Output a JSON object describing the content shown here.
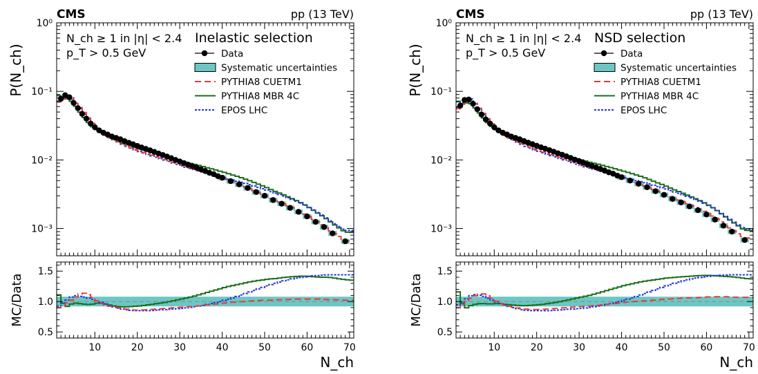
{
  "chart_data": [
    {
      "type": "line",
      "experiment": "CMS",
      "energy": "pp (13 TeV)",
      "cut_label_1": "N_ch ≥ 1 in |η| < 2.4",
      "cut_label_2": "p_T > 0.5 GeV",
      "selection": "Inelastic selection",
      "xlabel": "N_ch",
      "ylabel": "P(N_ch)",
      "ratio_ylabel": "MC/Data",
      "xlim": [
        1,
        71
      ],
      "ylim": [
        0.0004,
        1
      ],
      "ylog": true,
      "ratio_ylim": [
        0.4,
        1.65
      ],
      "x_ticks": [
        10,
        20,
        30,
        40,
        50,
        60,
        70
      ],
      "y_ticks": [
        {
          "value": 1,
          "label": "10⁰"
        },
        {
          "value": 0.1,
          "label": "10⁻¹"
        },
        {
          "value": 0.01,
          "label": "10⁻²"
        },
        {
          "value": 0.001,
          "label": "10⁻³"
        }
      ],
      "ratio_ticks": [
        {
          "value": 0.5,
          "label": "0.5"
        },
        {
          "value": 1.0,
          "label": "1.0"
        },
        {
          "value": 1.5,
          "label": "1.5"
        }
      ],
      "data_points": {
        "x": [
          2,
          3,
          4,
          5,
          6,
          7,
          8,
          9,
          10,
          11,
          12,
          13,
          14,
          15,
          16,
          17,
          18,
          19,
          20,
          21,
          22,
          23,
          24,
          25,
          26,
          27,
          28,
          29,
          30,
          31,
          32,
          33,
          34,
          35,
          36,
          37,
          38,
          39,
          40,
          42,
          44,
          46,
          48,
          50,
          52,
          54,
          56,
          58,
          60,
          62,
          64,
          66,
          69
        ],
        "y": [
          0.078,
          0.088,
          0.082,
          0.068,
          0.057,
          0.047,
          0.04,
          0.034,
          0.03,
          0.027,
          0.025,
          0.0235,
          0.022,
          0.021,
          0.02,
          0.0188,
          0.0178,
          0.0169,
          0.016,
          0.0152,
          0.0145,
          0.0138,
          0.0131,
          0.0124,
          0.0118,
          0.0112,
          0.0106,
          0.01,
          0.0095,
          0.009,
          0.0085,
          0.0081,
          0.0077,
          0.0073,
          0.0069,
          0.0065,
          0.0062,
          0.0058,
          0.0055,
          0.0049,
          0.0044,
          0.0039,
          0.0034,
          0.003,
          0.0026,
          0.0023,
          0.002,
          0.00175,
          0.0015,
          0.00125,
          0.00105,
          0.00085,
          0.00065
        ]
      },
      "syst_rel_error": 0.08,
      "mc_ratios": {
        "x": [
          1,
          3,
          5,
          7,
          9,
          11,
          13,
          15,
          17,
          19,
          21,
          23,
          25,
          27,
          29,
          31,
          33,
          35,
          37,
          39,
          41,
          43,
          45,
          47,
          49,
          51,
          53,
          55,
          57,
          59,
          61,
          63,
          65,
          67,
          69,
          71
        ],
        "pythia8_cuetm1": [
          0.88,
          0.95,
          1.05,
          1.15,
          1.1,
          0.98,
          0.93,
          0.9,
          0.88,
          0.86,
          0.86,
          0.87,
          0.88,
          0.89,
          0.9,
          0.91,
          0.92,
          0.93,
          0.95,
          0.96,
          0.98,
          0.99,
          1.0,
          1.01,
          1.02,
          1.02,
          1.03,
          1.03,
          1.04,
          1.04,
          1.04,
          1.04,
          1.03,
          1.03,
          1.02,
          1.02
        ],
        "pythia8_mbr4c": [
          1.18,
          0.9,
          0.98,
          0.96,
          0.95,
          0.98,
          0.95,
          0.92,
          0.91,
          0.92,
          0.93,
          0.95,
          0.97,
          0.99,
          1.02,
          1.05,
          1.08,
          1.12,
          1.16,
          1.2,
          1.24,
          1.27,
          1.3,
          1.33,
          1.35,
          1.37,
          1.38,
          1.4,
          1.41,
          1.42,
          1.41,
          1.4,
          1.4,
          1.38,
          1.36,
          1.35
        ],
        "epos_lhc": [
          0.9,
          1.0,
          1.1,
          1.08,
          1.05,
          1.0,
          0.95,
          0.9,
          0.87,
          0.85,
          0.85,
          0.85,
          0.86,
          0.87,
          0.88,
          0.89,
          0.91,
          0.93,
          0.96,
          0.99,
          1.03,
          1.07,
          1.12,
          1.17,
          1.22,
          1.27,
          1.31,
          1.35,
          1.38,
          1.4,
          1.42,
          1.43,
          1.44,
          1.44,
          1.44,
          1.44
        ]
      },
      "series": [
        {
          "name": "Data",
          "color": "#000000",
          "style": "marker"
        },
        {
          "name": "Systematic uncertainties",
          "color": "#6cc7c4",
          "style": "band"
        },
        {
          "name": "PYTHIA8 CUETM1",
          "color": "#ee3333",
          "style": "dashed"
        },
        {
          "name": "PYTHIA8 MBR 4C",
          "color": "#1a6e1a",
          "style": "solid"
        },
        {
          "name": "EPOS LHC",
          "color": "#2233dd",
          "style": "dotted"
        }
      ]
    },
    {
      "type": "line",
      "experiment": "CMS",
      "energy": "pp (13 TeV)",
      "cut_label_1": "N_ch ≥ 1 in |η| < 2.4",
      "cut_label_2": "p_T > 0.5 GeV",
      "selection": "NSD selection",
      "xlabel": "N_ch",
      "ylabel": "P(N_ch)",
      "ratio_ylabel": "MC/Data",
      "xlim": [
        1,
        71
      ],
      "ylim": [
        0.0004,
        1
      ],
      "ylog": true,
      "ratio_ylim": [
        0.4,
        1.65
      ],
      "x_ticks": [
        10,
        20,
        30,
        40,
        50,
        60,
        70
      ],
      "y_ticks": [
        {
          "value": 1,
          "label": "10⁰"
        },
        {
          "value": 0.1,
          "label": "10⁻¹"
        },
        {
          "value": 0.01,
          "label": "10⁻²"
        },
        {
          "value": 0.001,
          "label": "10⁻³"
        }
      ],
      "ratio_ticks": [
        {
          "value": 0.5,
          "label": "0.5"
        },
        {
          "value": 1.0,
          "label": "1.0"
        },
        {
          "value": 1.5,
          "label": "1.5"
        }
      ],
      "data_points": {
        "x": [
          2,
          3,
          4,
          5,
          6,
          7,
          8,
          9,
          10,
          11,
          12,
          13,
          14,
          15,
          16,
          17,
          18,
          19,
          20,
          21,
          22,
          23,
          24,
          25,
          26,
          27,
          28,
          29,
          30,
          31,
          32,
          33,
          34,
          35,
          36,
          37,
          38,
          39,
          40,
          42,
          44,
          46,
          48,
          50,
          52,
          54,
          56,
          58,
          60,
          62,
          64,
          66,
          69
        ],
        "y": [
          0.062,
          0.075,
          0.076,
          0.066,
          0.055,
          0.046,
          0.039,
          0.034,
          0.03,
          0.027,
          0.025,
          0.0235,
          0.022,
          0.021,
          0.02,
          0.0189,
          0.0179,
          0.017,
          0.0161,
          0.0153,
          0.0146,
          0.0139,
          0.0132,
          0.0125,
          0.0119,
          0.0113,
          0.0107,
          0.0101,
          0.0096,
          0.0091,
          0.0086,
          0.0082,
          0.0078,
          0.0074,
          0.007,
          0.0066,
          0.0063,
          0.0059,
          0.0056,
          0.005,
          0.0045,
          0.004,
          0.0035,
          0.0031,
          0.0027,
          0.0024,
          0.0021,
          0.00185,
          0.0016,
          0.00135,
          0.0011,
          0.0009,
          0.00068
        ]
      },
      "syst_rel_error": 0.08,
      "mc_ratios": {
        "x": [
          1,
          3,
          5,
          7,
          9,
          11,
          13,
          15,
          17,
          19,
          21,
          23,
          25,
          27,
          29,
          31,
          33,
          35,
          37,
          39,
          41,
          43,
          45,
          47,
          49,
          51,
          53,
          55,
          57,
          59,
          61,
          63,
          65,
          67,
          69,
          71
        ],
        "pythia8_cuetm1": [
          0.87,
          0.98,
          1.08,
          1.14,
          1.08,
          0.98,
          0.93,
          0.9,
          0.88,
          0.87,
          0.87,
          0.88,
          0.89,
          0.9,
          0.91,
          0.92,
          0.93,
          0.94,
          0.96,
          0.97,
          0.99,
          1.0,
          1.01,
          1.02,
          1.03,
          1.04,
          1.05,
          1.06,
          1.06,
          1.07,
          1.08,
          1.08,
          1.08,
          1.07,
          1.07,
          1.07
        ],
        "pythia8_mbr4c": [
          1.25,
          0.88,
          0.95,
          0.97,
          0.96,
          0.97,
          0.95,
          0.94,
          0.93,
          0.94,
          0.95,
          0.97,
          0.99,
          1.02,
          1.05,
          1.08,
          1.11,
          1.15,
          1.19,
          1.23,
          1.27,
          1.3,
          1.33,
          1.35,
          1.37,
          1.39,
          1.4,
          1.41,
          1.42,
          1.43,
          1.43,
          1.42,
          1.41,
          1.4,
          1.38,
          1.37
        ],
        "epos_lhc": [
          0.92,
          1.02,
          1.12,
          1.1,
          1.04,
          0.98,
          0.93,
          0.89,
          0.86,
          0.85,
          0.85,
          0.85,
          0.86,
          0.87,
          0.88,
          0.89,
          0.91,
          0.93,
          0.96,
          0.99,
          1.03,
          1.07,
          1.12,
          1.17,
          1.22,
          1.27,
          1.31,
          1.35,
          1.38,
          1.4,
          1.42,
          1.43,
          1.44,
          1.44,
          1.44,
          1.44
        ]
      },
      "series": [
        {
          "name": "Data",
          "color": "#000000",
          "style": "marker"
        },
        {
          "name": "Systematic uncertainties",
          "color": "#6cc7c4",
          "style": "band"
        },
        {
          "name": "PYTHIA8 CUETM1",
          "color": "#ee3333",
          "style": "dashed"
        },
        {
          "name": "PYTHIA8 MBR 4C",
          "color": "#1a6e1a",
          "style": "solid"
        },
        {
          "name": "EPOS LHC",
          "color": "#2233dd",
          "style": "dotted"
        }
      ]
    }
  ]
}
